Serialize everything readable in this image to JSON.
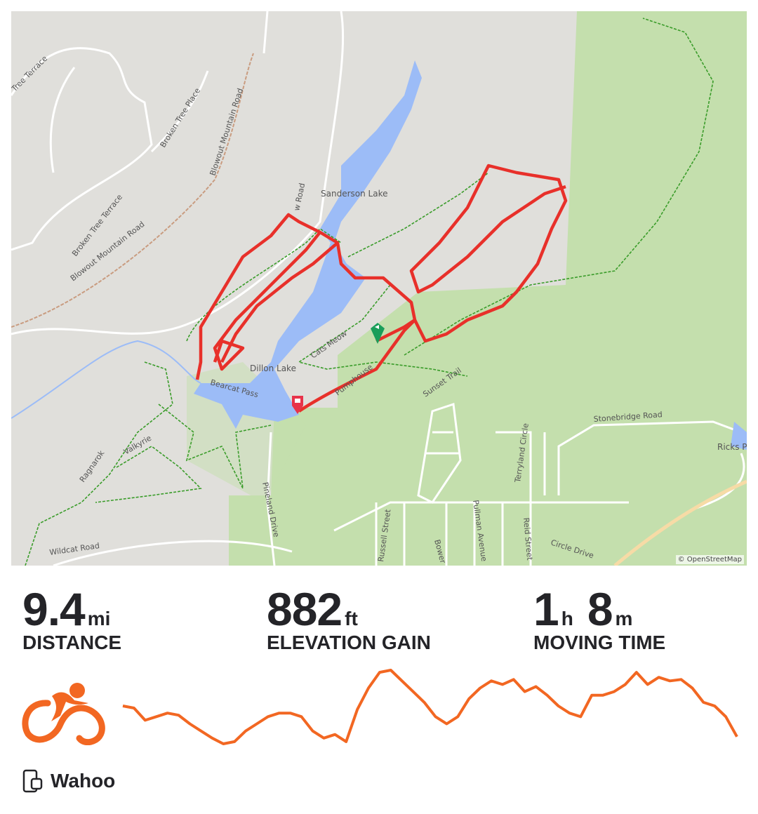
{
  "map": {
    "labels": {
      "tree_terrace": "Tree Terrace",
      "broken_tree_place": "Broken Tree Place",
      "broken_tree_terrace": "Broken Tree Terrace",
      "blowout_mountain_road_1": "Blowout Mountain Road",
      "blowout_mountain_road_2": "Blowout Mountain Road",
      "w_road": "w Road",
      "sanderson_lake": "Sanderson Lake",
      "dillon_lake": "Dillon Lake",
      "cats_meow": "Cats Meow",
      "bearcat_pass": "Bearcat Pass",
      "pumphouse": "Pumphouse",
      "sunset_trail": "Sunset Trail",
      "stonebridge_road": "Stonebridge Road",
      "ricks_pond": "Ricks Po",
      "terryland_circle": "Terryland Circle",
      "ragnarok": "Ragnarok",
      "valkyrie": "Valkyrie",
      "pineland_drive": "Pineland Drive",
      "russell_street": "Russell Street",
      "pullman_avenue": "Pullman Avenue",
      "reid_street": "Reid Street",
      "bower": "Bower",
      "circle_drive": "Circle Drive",
      "wildcat_road": "Wildcat Road"
    },
    "attribution": "© OpenStreetMap",
    "colors": {
      "route": "#e8302a",
      "start": "#1a9e5a",
      "end": "#e8334a",
      "water": "#9cbcf7",
      "forest": "#c4dfad"
    }
  },
  "stats": [
    {
      "value": "9.4",
      "unit": "mi",
      "label": "DISTANCE"
    },
    {
      "value": "882",
      "unit": "ft",
      "label": "ELEVATION GAIN"
    },
    {
      "value_h": "1",
      "unit_h": "h",
      "value_m": "8",
      "unit_m": "m",
      "label": "MOVING TIME"
    }
  ],
  "activity": {
    "type_icon": "cycling-icon",
    "color": "#f26722"
  },
  "elevation_profile": [
    55,
    52,
    35,
    40,
    45,
    42,
    30,
    20,
    10,
    2,
    5,
    20,
    30,
    40,
    45,
    45,
    40,
    20,
    10,
    15,
    5,
    50,
    80,
    102,
    105,
    90,
    75,
    60,
    40,
    30,
    40,
    65,
    80,
    90,
    85,
    92,
    75,
    82,
    70,
    55,
    45,
    40,
    70,
    70,
    75,
    85,
    102,
    85,
    95,
    90,
    92,
    80,
    60,
    55,
    40,
    12
  ],
  "device": {
    "icon": "device-watch-icon",
    "name": "Wahoo"
  }
}
